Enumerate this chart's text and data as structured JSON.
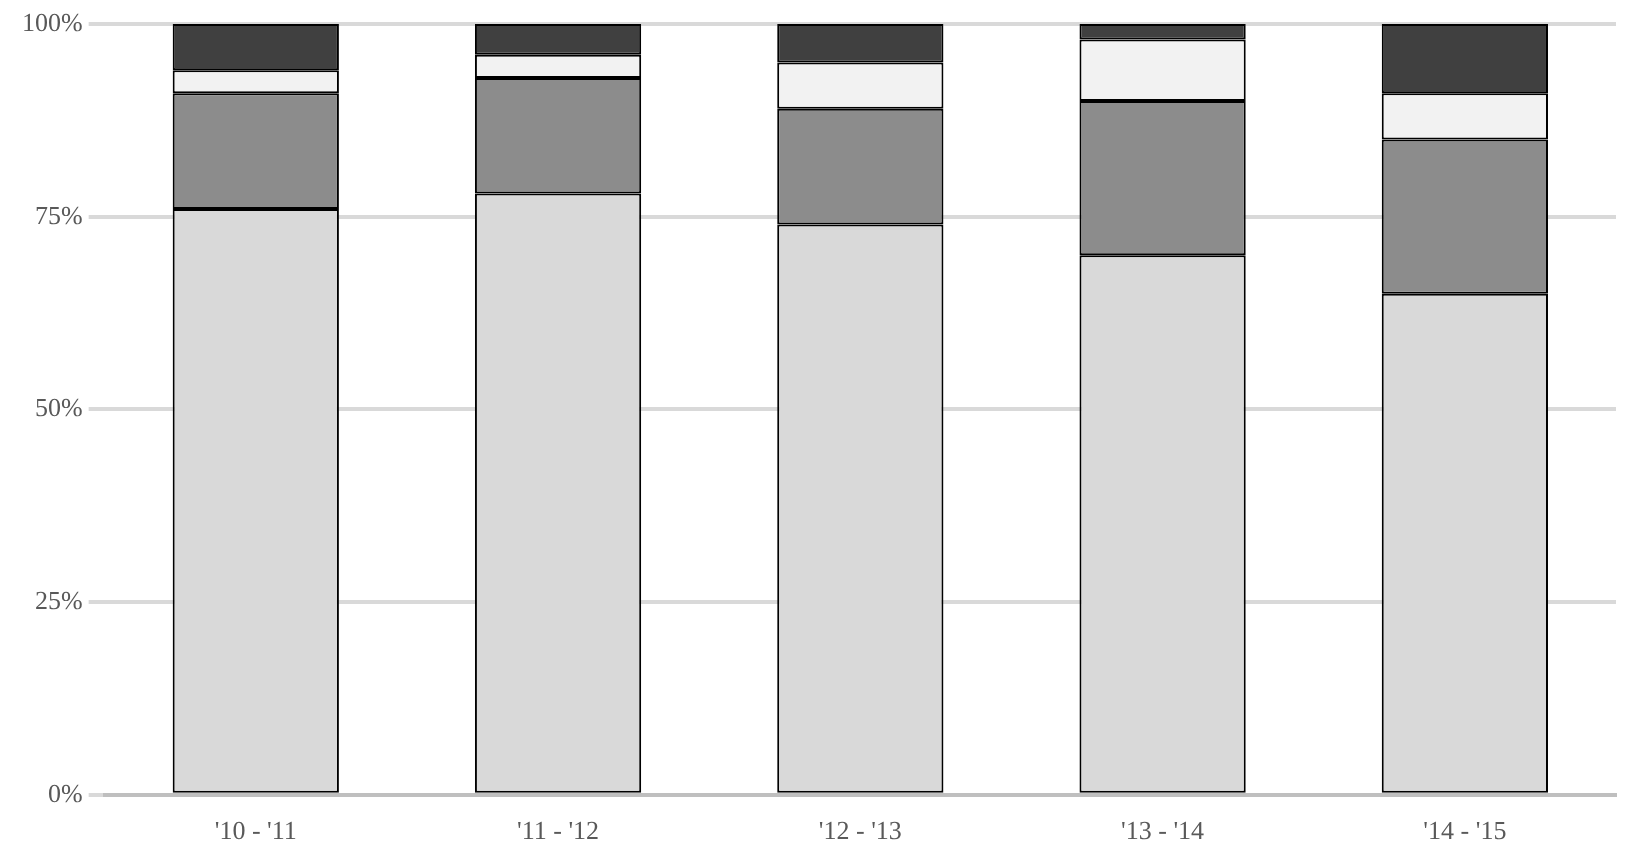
{
  "chart_data": {
    "type": "bar",
    "stacked": true,
    "categories": [
      "'10 - '11",
      "'11 - '12",
      "'12 - '13",
      "'13 - '14",
      "'14 - '15"
    ],
    "series": [
      {
        "color": "#d9d9d9",
        "values": [
          76,
          78,
          74,
          70,
          65
        ]
      },
      {
        "color": "#8c8c8c",
        "values": [
          15,
          15,
          15,
          20,
          20
        ]
      },
      {
        "color": "#f2f2f2",
        "values": [
          3,
          3,
          6,
          8,
          6
        ]
      },
      {
        "color": "#404040",
        "values": [
          6,
          4,
          5,
          2,
          9
        ]
      }
    ],
    "ylim": [
      0,
      100
    ],
    "yticks": [
      {
        "value": 0,
        "label": "0%"
      },
      {
        "value": 25,
        "label": "25%"
      },
      {
        "value": 50,
        "label": "50%"
      },
      {
        "value": 75,
        "label": "75%"
      },
      {
        "value": 100,
        "label": "100%"
      }
    ],
    "grid": "y",
    "legend": false
  }
}
